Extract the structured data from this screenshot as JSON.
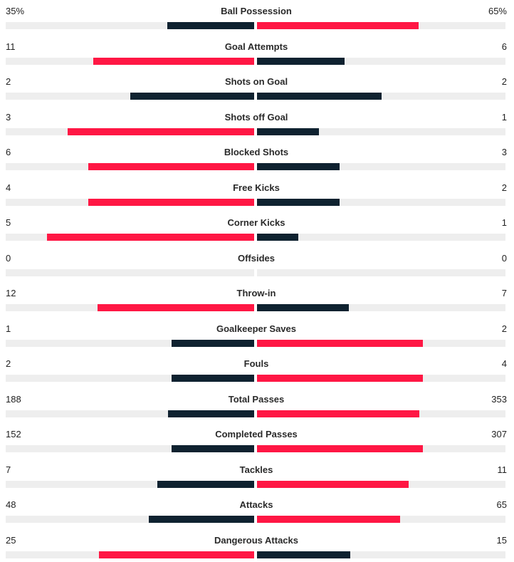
{
  "colors": {
    "higher": "#ff1744",
    "lower": "#0f2230",
    "track": "#eeeeee",
    "text": "#222222"
  },
  "stats": [
    {
      "label": "Ball Possession",
      "home": "35%",
      "away": "65%",
      "home_share": 0.35,
      "away_share": 0.65
    },
    {
      "label": "Goal Attempts",
      "home": "11",
      "away": "6",
      "home_share": 0.6471,
      "away_share": 0.3529
    },
    {
      "label": "Shots on Goal",
      "home": "2",
      "away": "2",
      "home_share": 0.5,
      "away_share": 0.5
    },
    {
      "label": "Shots off Goal",
      "home": "3",
      "away": "1",
      "home_share": 0.75,
      "away_share": 0.25
    },
    {
      "label": "Blocked Shots",
      "home": "6",
      "away": "3",
      "home_share": 0.6667,
      "away_share": 0.3333
    },
    {
      "label": "Free Kicks",
      "home": "4",
      "away": "2",
      "home_share": 0.6667,
      "away_share": 0.3333
    },
    {
      "label": "Corner Kicks",
      "home": "5",
      "away": "1",
      "home_share": 0.8333,
      "away_share": 0.1667
    },
    {
      "label": "Offsides",
      "home": "0",
      "away": "0",
      "home_share": 0,
      "away_share": 0
    },
    {
      "label": "Throw-in",
      "home": "12",
      "away": "7",
      "home_share": 0.6316,
      "away_share": 0.3684
    },
    {
      "label": "Goalkeeper Saves",
      "home": "1",
      "away": "2",
      "home_share": 0.3333,
      "away_share": 0.6667
    },
    {
      "label": "Fouls",
      "home": "2",
      "away": "4",
      "home_share": 0.3333,
      "away_share": 0.6667
    },
    {
      "label": "Total Passes",
      "home": "188",
      "away": "353",
      "home_share": 0.3475,
      "away_share": 0.6525
    },
    {
      "label": "Completed Passes",
      "home": "152",
      "away": "307",
      "home_share": 0.3312,
      "away_share": 0.6688
    },
    {
      "label": "Tackles",
      "home": "7",
      "away": "11",
      "home_share": 0.3889,
      "away_share": 0.6111
    },
    {
      "label": "Attacks",
      "home": "48",
      "away": "65",
      "home_share": 0.4248,
      "away_share": 0.5752
    },
    {
      "label": "Dangerous Attacks",
      "home": "25",
      "away": "15",
      "home_share": 0.625,
      "away_share": 0.375
    }
  ]
}
